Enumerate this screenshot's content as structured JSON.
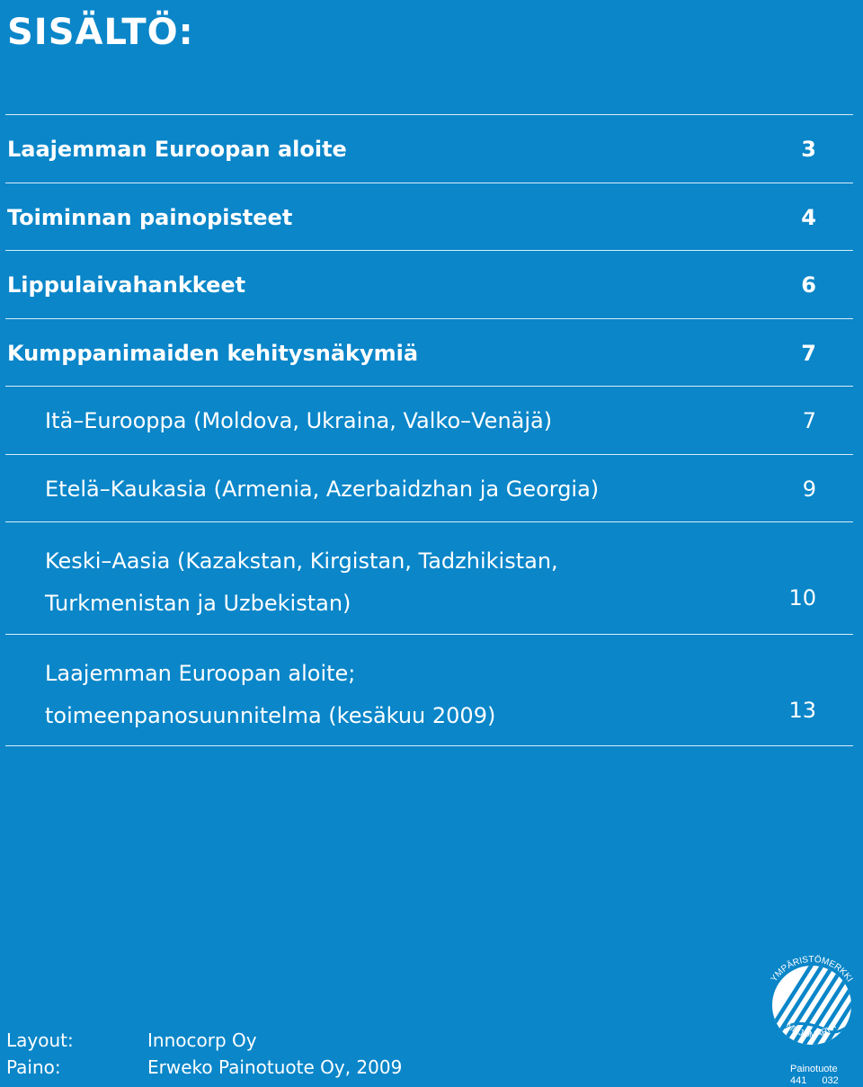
{
  "title": "SISÄLTÖ:",
  "toc": [
    {
      "text": "Laajemman Euroopan aloite",
      "page": "3"
    },
    {
      "text": "Toiminnan painopisteet",
      "page": "4"
    },
    {
      "text": "Lippulaivahankkeet",
      "page": "6"
    },
    {
      "text": "Kumppanimaiden kehitysnäkymiä",
      "page": "7"
    },
    {
      "text": "Itä–Eurooppa (Moldova, Ukraina, Valko–Venäjä)",
      "page": "7"
    },
    {
      "text": "Etelä–Kaukasia (Armenia, Azerbaidzhan ja Georgia)",
      "page": "9"
    },
    {
      "line1": "Keski–Aasia (Kazakstan, Kirgistan, Tadzhikistan,",
      "line2": "Turkmenistan ja Uzbekistan)",
      "page": "10"
    },
    {
      "line1": "Laajemman Euroopan aloite;",
      "line2": "toimeenpanosuunnitelma (kesäkuu 2009)",
      "page": "13"
    }
  ],
  "credits": {
    "layout_label": "Layout:",
    "layout_value": "Innocorp Oy",
    "print_label": "Paino:",
    "print_value": "Erweko Painotuote Oy, 2009"
  },
  "ecolabel": {
    "icon": "nordic-swan-ecolabel-icon",
    "top_text": "YMPÄRISTÖMERKKI",
    "bottom_text": "MILJÖMÄRKT",
    "caption": "Painotuote",
    "num1": "441",
    "num2": "032"
  },
  "colors": {
    "background": "#0a86c9",
    "text": "#ffffff"
  }
}
